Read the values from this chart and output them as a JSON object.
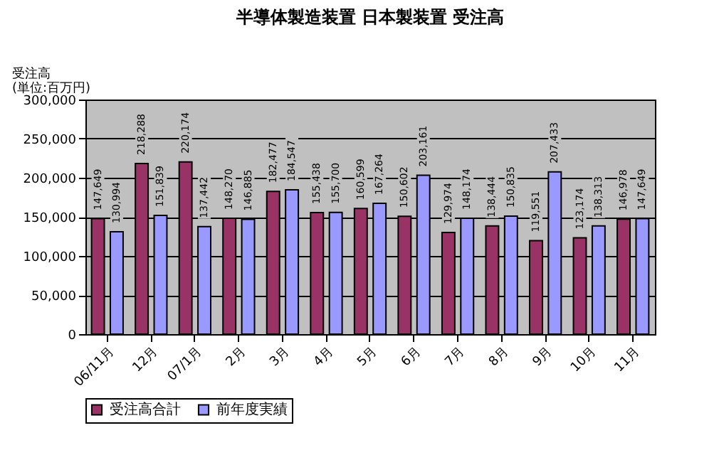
{
  "chart_data": {
    "type": "bar",
    "title": "半導体製造装置 日本製装置 受注高",
    "ylabel": "受注高\n(単位:百万円)",
    "categories": [
      "06/11月",
      "12月",
      "07/1月",
      "2月",
      "3月",
      "4月",
      "5月",
      "6月",
      "7月",
      "8月",
      "9月",
      "10月",
      "11月"
    ],
    "series": [
      {
        "name": "受注高合計",
        "color": "#993366",
        "values": [
          147649,
          218288,
          220174,
          148270,
          182477,
          155438,
          160599,
          150602,
          129974,
          138444,
          119551,
          123174,
          146978
        ],
        "value_labels": [
          "147,649",
          "218,288",
          "220,174",
          "148,270",
          "182,477",
          "155,438",
          "160,599",
          "150,602",
          "129,974",
          "138,444",
          "119,551",
          "123,174",
          "146,978"
        ]
      },
      {
        "name": "前年度実績",
        "color": "#9999ff",
        "values": [
          130994,
          151839,
          137442,
          146885,
          184547,
          155700,
          167264,
          203161,
          148174,
          150835,
          207433,
          138313,
          147649
        ],
        "value_labels": [
          "130,994",
          "151,839",
          "137,442",
          "146,885",
          "184,547",
          "155,700",
          "167,264",
          "203,161",
          "148,174",
          "150,835",
          "207,433",
          "138,313",
          "147,649"
        ]
      }
    ],
    "ylim": [
      0,
      300000
    ],
    "yticks": [
      0,
      {
        "value": 50000,
        "label": "50,000"
      },
      {
        "value": 100000,
        "label": "100,000"
      },
      {
        "value": 150000,
        "label": "150,000"
      },
      {
        "value": 200000,
        "label": "200,000"
      },
      {
        "value": 250000,
        "label": "250,000"
      },
      {
        "value": 300000,
        "label": "300,000"
      }
    ],
    "grid": "y",
    "legend": "bottom"
  }
}
